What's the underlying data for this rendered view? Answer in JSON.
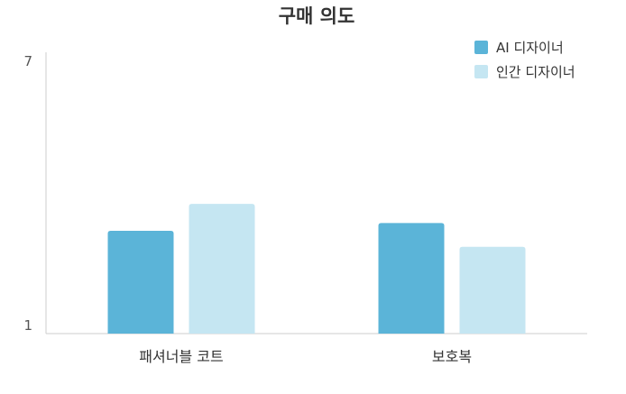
{
  "chart_data": {
    "type": "bar",
    "title": "구매 의도",
    "xlabel": "",
    "ylabel": "",
    "categories": [
      "패셔너블 코트",
      "보호복"
    ],
    "series": [
      {
        "name": "AI 디자이너",
        "values": [
          3.25,
          3.42
        ],
        "color": "#5bb4d8"
      },
      {
        "name": "인간 디자이너",
        "values": [
          3.84,
          2.9
        ],
        "color": "#c5e6f2"
      }
    ],
    "ylim": [
      1,
      7
    ],
    "yticks": [
      "1",
      "7"
    ],
    "grid": false,
    "legend": "top-right"
  }
}
